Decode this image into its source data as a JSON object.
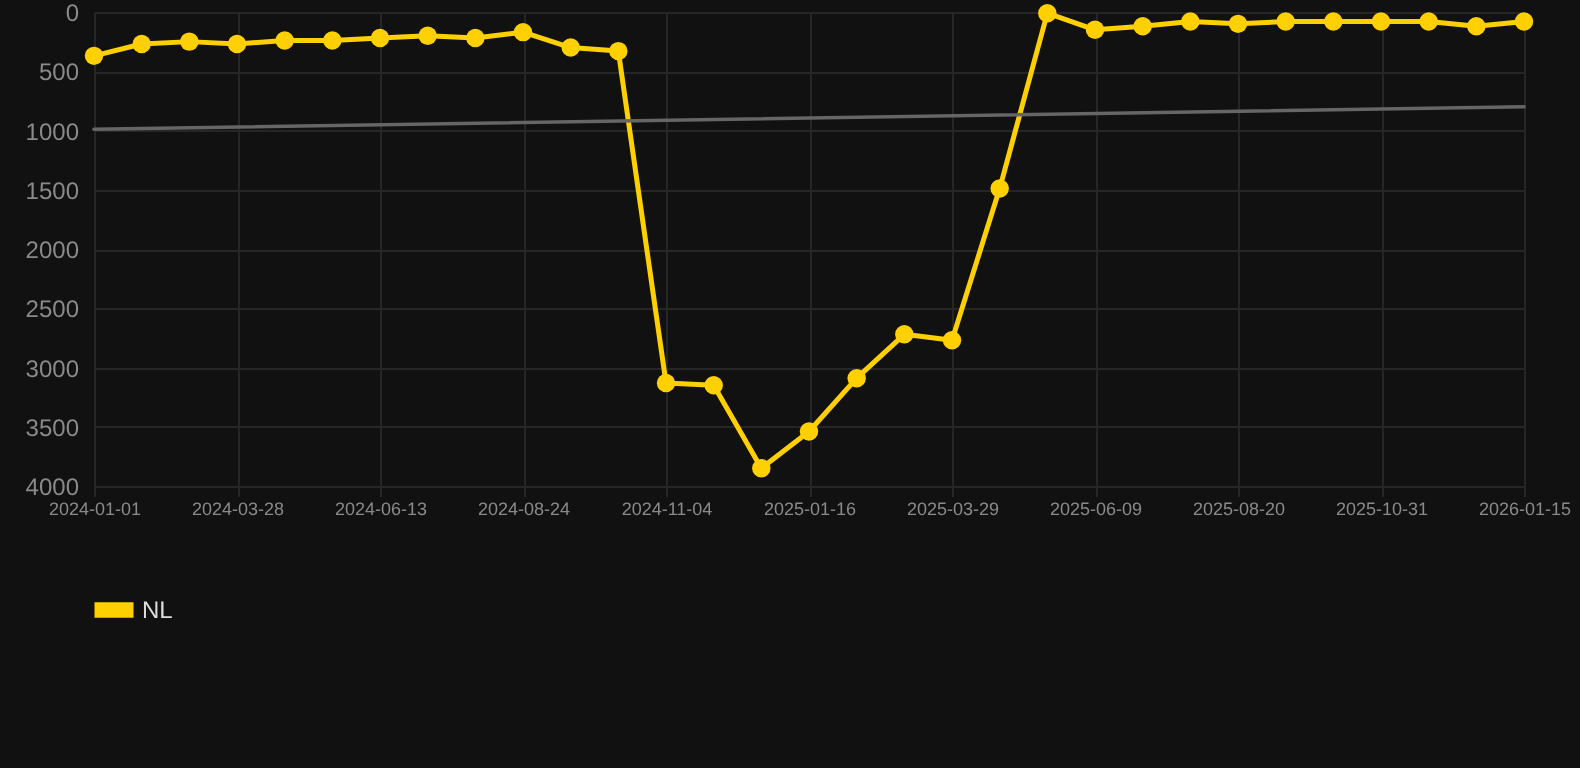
{
  "chart_data": {
    "type": "line",
    "categories": [
      "2024-01-01",
      null,
      null,
      "2024-03-28",
      null,
      null,
      "2024-06-13",
      null,
      null,
      "2024-08-24",
      null,
      null,
      "2024-11-04",
      null,
      null,
      "2025-01-16",
      null,
      null,
      "2025-03-29",
      null,
      null,
      "2025-06-09",
      null,
      null,
      "2025-08-20",
      null,
      null,
      "2025-10-31",
      null,
      null,
      "2026-01-15"
    ],
    "series": [
      {
        "name": "NL",
        "color": "#ffd000",
        "values": [
          370,
          270,
          250,
          270,
          240,
          240,
          220,
          200,
          220,
          170,
          300,
          330,
          3130,
          3150,
          3850,
          3540,
          3090,
          2720,
          2770,
          1490,
          10,
          150,
          120,
          80,
          100,
          80,
          80,
          80,
          80,
          120,
          80
        ]
      },
      {
        "color": "#666666",
        "marker": "none",
        "values": [
          990,
          null,
          null,
          null,
          null,
          null,
          null,
          null,
          null,
          null,
          null,
          null,
          null,
          null,
          null,
          null,
          null,
          null,
          null,
          null,
          null,
          null,
          null,
          null,
          null,
          null,
          null,
          null,
          null,
          null,
          800
        ]
      }
    ],
    "ylim": [
      4000,
      0
    ],
    "yticks": [
      0,
      500,
      1000,
      1500,
      2000,
      2500,
      3000,
      3500,
      4000
    ],
    "grid": true,
    "legend": "bottom",
    "marker": "circle"
  }
}
